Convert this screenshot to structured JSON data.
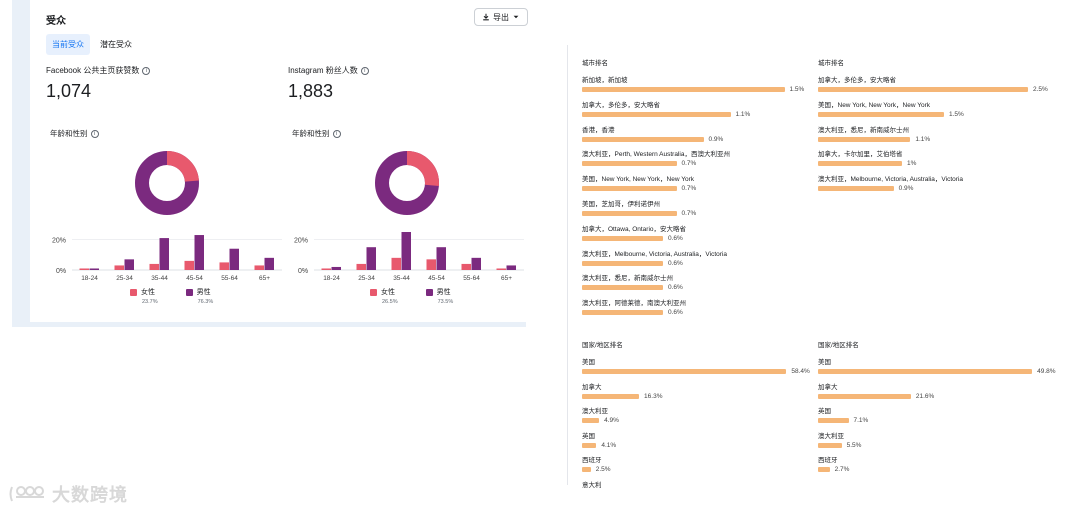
{
  "header": {
    "title": "受众",
    "export_label": "导出"
  },
  "tabs": [
    {
      "label": "当前受众"
    },
    {
      "label": "潜在受众"
    }
  ],
  "facebook": {
    "metric_label": "Facebook 公共主页获赞数",
    "metric_value": "1,074",
    "section_label": "年龄和性别",
    "female_pct": 23.7,
    "male_pct": 76.3,
    "female_pct_label": "23.7%",
    "male_pct_label": "76.3%"
  },
  "instagram": {
    "metric_label": "Instagram 粉丝人数",
    "metric_value": "1,883",
    "section_label": "年龄和性别",
    "female_pct": 26.5,
    "male_pct": 73.5,
    "female_pct_label": "26.5%",
    "male_pct_label": "73.5%"
  },
  "legend": {
    "female": "女性",
    "male": "男性"
  },
  "colors": {
    "female": "#e8596d",
    "male": "#7b2a7f",
    "bar": "#f5b677"
  },
  "chart_data": [
    {
      "type": "bar",
      "title": "年龄和性别",
      "categories": [
        "18-24",
        "25-34",
        "35-44",
        "45-54",
        "55-64",
        "65+"
      ],
      "series": [
        {
          "name": "女性",
          "values": [
            1,
            3,
            4,
            6,
            5,
            3
          ]
        },
        {
          "name": "男性",
          "values": [
            1,
            7,
            21,
            23,
            14,
            8
          ]
        }
      ],
      "yticks": [
        "20%",
        "0%"
      ],
      "ylim": [
        0,
        25
      ]
    },
    {
      "type": "bar",
      "title": "年龄和性别",
      "categories": [
        "18-24",
        "25-34",
        "35-44",
        "45-54",
        "55-64",
        "65+"
      ],
      "series": [
        {
          "name": "女性",
          "values": [
            1,
            4,
            8,
            7,
            4,
            1
          ]
        },
        {
          "name": "男性",
          "values": [
            2,
            15,
            25,
            15,
            8,
            3
          ]
        }
      ],
      "yticks": [
        "20%",
        "0%"
      ],
      "ylim": [
        0,
        25
      ]
    }
  ],
  "city_rank_left": {
    "title": "城市排名",
    "items": [
      {
        "label": "新加坡，新加坡",
        "value": 1.5,
        "display": "1.5%"
      },
      {
        "label": "加拿大，多伦多，安大略省",
        "value": 1.1,
        "display": "1.1%"
      },
      {
        "label": "香港，香港",
        "value": 0.9,
        "display": "0.9%"
      },
      {
        "label": "澳大利亚，Perth, Western Australia，西澳大利亚州",
        "value": 0.7,
        "display": "0.7%"
      },
      {
        "label": "美国，New York, New York，New York",
        "value": 0.7,
        "display": "0.7%"
      },
      {
        "label": "美国，芝加哥，伊利诺伊州",
        "value": 0.7,
        "display": "0.7%"
      },
      {
        "label": "加拿大，Ottawa, Ontario，安大略省",
        "value": 0.6,
        "display": "0.6%"
      },
      {
        "label": "澳大利亚，Melbourne, Victoria, Australia，Victoria",
        "value": 0.6,
        "display": "0.6%"
      },
      {
        "label": "澳大利亚，悉尼，新南威尔士州",
        "value": 0.6,
        "display": "0.6%"
      },
      {
        "label": "澳大利亚，阿德莱德，南澳大利亚州",
        "value": 0.6,
        "display": "0.6%"
      }
    ]
  },
  "city_rank_right": {
    "title": "城市排名",
    "items": [
      {
        "label": "加拿大，多伦多，安大略省",
        "value": 2.5,
        "display": "2.5%"
      },
      {
        "label": "美国，New York, New York，New York",
        "value": 1.5,
        "display": "1.5%"
      },
      {
        "label": "澳大利亚，悉尼，新南威尔士州",
        "value": 1.1,
        "display": "1.1%"
      },
      {
        "label": "加拿大，卡尔加里，艾伯塔省",
        "value": 1.0,
        "display": "1%"
      },
      {
        "label": "澳大利亚，Melbourne, Victoria, Australia，Victoria",
        "value": 0.9,
        "display": "0.9%"
      }
    ]
  },
  "country_rank_left": {
    "title": "国家/地区排名",
    "items": [
      {
        "label": "美国",
        "value": 58.4,
        "display": "58.4%"
      },
      {
        "label": "加拿大",
        "value": 16.3,
        "display": "16.3%"
      },
      {
        "label": "澳大利亚",
        "value": 4.9,
        "display": "4.9%"
      },
      {
        "label": "英国",
        "value": 4.1,
        "display": "4.1%"
      },
      {
        "label": "西班牙",
        "value": 2.5,
        "display": "2.5%"
      },
      {
        "label": "意大利",
        "value": null,
        "display": ""
      }
    ]
  },
  "country_rank_right": {
    "title": "国家/地区排名",
    "items": [
      {
        "label": "美国",
        "value": 49.8,
        "display": "49.8%"
      },
      {
        "label": "加拿大",
        "value": 21.6,
        "display": "21.6%"
      },
      {
        "label": "英国",
        "value": 7.1,
        "display": "7.1%"
      },
      {
        "label": "澳大利亚",
        "value": 5.5,
        "display": "5.5%"
      },
      {
        "label": "西班牙",
        "value": 2.7,
        "display": "2.7%"
      }
    ]
  },
  "watermark": {
    "text": "大数跨境"
  }
}
